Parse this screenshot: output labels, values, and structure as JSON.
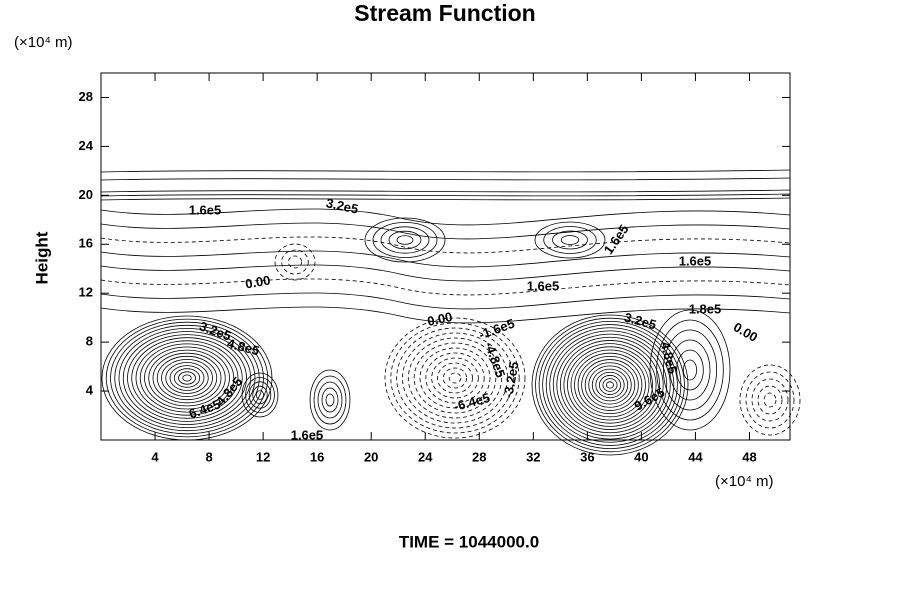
{
  "chart_data": {
    "type": "contour",
    "title": "Stream Function",
    "y_unit": "(×10⁴ m)",
    "x_unit": "(×10⁴ m)",
    "ylabel": "Height",
    "footer": "TIME = 1044000.0",
    "xlim": [
      0,
      51
    ],
    "xticks": [
      4,
      8,
      12,
      16,
      20,
      24,
      28,
      32,
      36,
      40,
      44,
      48
    ],
    "ylim": [
      0,
      30
    ],
    "yticks": [
      4,
      8,
      12,
      16,
      20,
      24,
      28
    ],
    "contour_labels": [
      "1.6e5",
      "3.2e5",
      "1.6e5",
      "1.6e5",
      "1.6e5",
      "0.00",
      "0.00",
      "-1.6e5",
      "3.2e5",
      "1.8e5",
      "0.00",
      "3.2e5",
      "4.8e5",
      "-4.8e5",
      "-3.2e5",
      "-6.4e5",
      "6.4e5",
      "4.8e5",
      "9.6e5",
      "4.8e5",
      "1.6e5"
    ]
  }
}
